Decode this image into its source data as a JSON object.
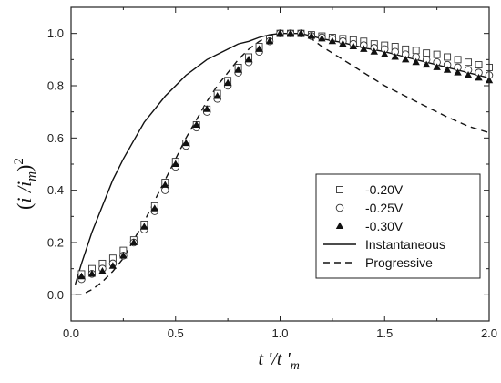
{
  "chart_data": {
    "type": "scatter",
    "title": "",
    "xlabel": {
      "main": "t '/t '",
      "sub": "m"
    },
    "ylabel": {
      "open": "(",
      "i1": "i",
      "slash": " /",
      "i2": "i",
      "sub": "m",
      "close": ")",
      "sup": "2"
    },
    "xlim": [
      0.0,
      2.0
    ],
    "ylim": [
      -0.1,
      1.1
    ],
    "x_ticks": [
      "0.0",
      "0.5",
      "1.0",
      "1.5",
      "2.0"
    ],
    "y_ticks": [
      "0.0",
      "0.2",
      "0.4",
      "0.6",
      "0.8",
      "1.0"
    ],
    "grid": false,
    "legend_position": "center-right",
    "series": [
      {
        "name": "-0.20V",
        "marker": "open-square",
        "x": [
          0.05,
          0.1,
          0.15,
          0.2,
          0.25,
          0.3,
          0.35,
          0.4,
          0.45,
          0.5,
          0.55,
          0.6,
          0.65,
          0.7,
          0.75,
          0.8,
          0.85,
          0.9,
          0.95,
          1.0,
          1.05,
          1.1,
          1.15,
          1.2,
          1.25,
          1.3,
          1.35,
          1.4,
          1.45,
          1.5,
          1.55,
          1.6,
          1.65,
          1.7,
          1.75,
          1.8,
          1.85,
          1.9,
          1.95,
          2.0
        ],
        "y": [
          0.08,
          0.1,
          0.12,
          0.14,
          0.17,
          0.21,
          0.27,
          0.34,
          0.43,
          0.51,
          0.58,
          0.65,
          0.71,
          0.77,
          0.82,
          0.87,
          0.91,
          0.95,
          0.98,
          1.0,
          1.0,
          1.0,
          0.995,
          0.99,
          0.985,
          0.98,
          0.975,
          0.97,
          0.96,
          0.955,
          0.95,
          0.94,
          0.935,
          0.925,
          0.92,
          0.91,
          0.9,
          0.89,
          0.88,
          0.87
        ]
      },
      {
        "name": "-0.25V",
        "marker": "open-circle",
        "x": [
          0.05,
          0.1,
          0.15,
          0.2,
          0.25,
          0.3,
          0.35,
          0.4,
          0.45,
          0.5,
          0.55,
          0.6,
          0.65,
          0.7,
          0.75,
          0.8,
          0.85,
          0.9,
          0.95,
          1.0,
          1.05,
          1.1,
          1.15,
          1.2,
          1.25,
          1.3,
          1.35,
          1.4,
          1.45,
          1.5,
          1.55,
          1.6,
          1.65,
          1.7,
          1.75,
          1.8,
          1.85,
          1.9,
          1.95,
          2.0
        ],
        "y": [
          0.06,
          0.08,
          0.1,
          0.12,
          0.15,
          0.2,
          0.25,
          0.32,
          0.4,
          0.49,
          0.57,
          0.64,
          0.7,
          0.75,
          0.8,
          0.85,
          0.89,
          0.93,
          0.97,
          1.0,
          1.0,
          1.0,
          0.99,
          0.985,
          0.98,
          0.97,
          0.96,
          0.955,
          0.945,
          0.94,
          0.93,
          0.92,
          0.91,
          0.9,
          0.89,
          0.88,
          0.87,
          0.86,
          0.85,
          0.84
        ]
      },
      {
        "name": "-0.30V",
        "marker": "filled-triangle",
        "x": [
          0.05,
          0.1,
          0.15,
          0.2,
          0.25,
          0.3,
          0.35,
          0.4,
          0.45,
          0.5,
          0.55,
          0.6,
          0.65,
          0.7,
          0.75,
          0.8,
          0.85,
          0.9,
          0.95,
          1.0,
          1.05,
          1.1,
          1.15,
          1.2,
          1.25,
          1.3,
          1.35,
          1.4,
          1.45,
          1.5,
          1.55,
          1.6,
          1.65,
          1.7,
          1.75,
          1.8,
          1.85,
          1.9,
          1.95,
          2.0
        ],
        "y": [
          0.07,
          0.08,
          0.09,
          0.11,
          0.15,
          0.2,
          0.26,
          0.33,
          0.42,
          0.5,
          0.58,
          0.65,
          0.71,
          0.76,
          0.81,
          0.86,
          0.9,
          0.94,
          0.97,
          1.0,
          1.0,
          1.0,
          0.99,
          0.98,
          0.97,
          0.96,
          0.95,
          0.94,
          0.93,
          0.92,
          0.91,
          0.9,
          0.89,
          0.88,
          0.87,
          0.86,
          0.85,
          0.84,
          0.83,
          0.82
        ]
      },
      {
        "name": "Instantaneous",
        "line": "solid",
        "x": [
          0.02,
          0.05,
          0.1,
          0.15,
          0.2,
          0.25,
          0.3,
          0.35,
          0.4,
          0.45,
          0.5,
          0.55,
          0.6,
          0.65,
          0.7,
          0.75,
          0.8,
          0.85,
          0.9,
          0.95,
          1.0,
          1.05,
          1.1,
          1.15,
          1.2,
          1.3,
          1.4,
          1.5,
          1.6,
          1.7,
          1.8,
          1.9,
          2.0
        ],
        "y": [
          0.04,
          0.12,
          0.24,
          0.34,
          0.44,
          0.52,
          0.59,
          0.66,
          0.71,
          0.76,
          0.8,
          0.84,
          0.87,
          0.9,
          0.92,
          0.94,
          0.96,
          0.97,
          0.985,
          0.995,
          1.0,
          1.0,
          1.0,
          0.99,
          0.98,
          0.965,
          0.945,
          0.93,
          0.91,
          0.89,
          0.87,
          0.85,
          0.83
        ]
      },
      {
        "name": "Progressive",
        "line": "dashed",
        "x": [
          0.02,
          0.05,
          0.1,
          0.15,
          0.2,
          0.25,
          0.3,
          0.35,
          0.4,
          0.45,
          0.5,
          0.55,
          0.6,
          0.65,
          0.7,
          0.75,
          0.8,
          0.85,
          0.9,
          0.95,
          1.0,
          1.05,
          1.1,
          1.15,
          1.2,
          1.3,
          1.4,
          1.5,
          1.6,
          1.7,
          1.8,
          1.9,
          2.0
        ],
        "y": [
          0.0,
          0.0,
          0.02,
          0.05,
          0.09,
          0.14,
          0.21,
          0.28,
          0.36,
          0.44,
          0.52,
          0.6,
          0.67,
          0.74,
          0.8,
          0.85,
          0.9,
          0.94,
          0.97,
          0.99,
          1.0,
          1.0,
          0.995,
          0.98,
          0.95,
          0.9,
          0.85,
          0.8,
          0.76,
          0.72,
          0.68,
          0.645,
          0.62
        ]
      }
    ]
  }
}
